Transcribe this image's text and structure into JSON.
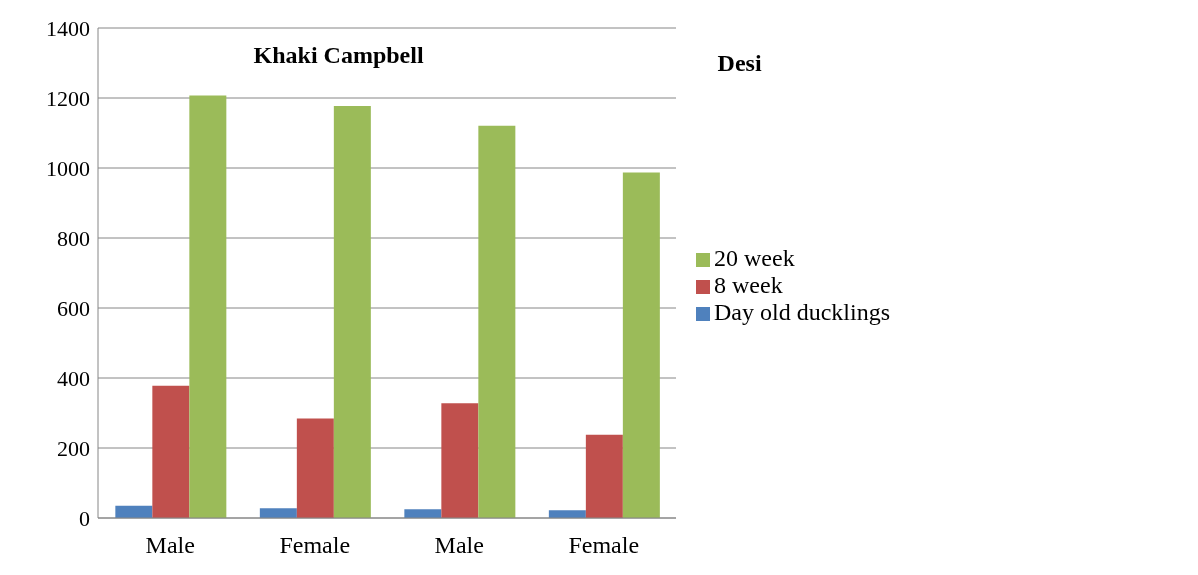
{
  "chart_data": {
    "type": "bar",
    "categories": [
      "Male",
      "Female",
      "Male",
      "Female"
    ],
    "series": [
      {
        "name": "Day old ducklings",
        "color": "#4f81bd",
        "values": [
          35,
          28,
          25,
          22
        ]
      },
      {
        "name": "8 week",
        "color": "#c0504d",
        "values": [
          378,
          284,
          328,
          238
        ]
      },
      {
        "name": "20 week",
        "color": "#9bbb59",
        "values": [
          1207,
          1177,
          1121,
          987
        ]
      }
    ],
    "annotations": [
      "Khaki Campbell",
      "Desi"
    ],
    "ylim": [
      0,
      1400
    ],
    "yticks": [
      0,
      200,
      400,
      600,
      800,
      1000,
      1200,
      1400
    ],
    "grid": "y",
    "legend": "right"
  }
}
